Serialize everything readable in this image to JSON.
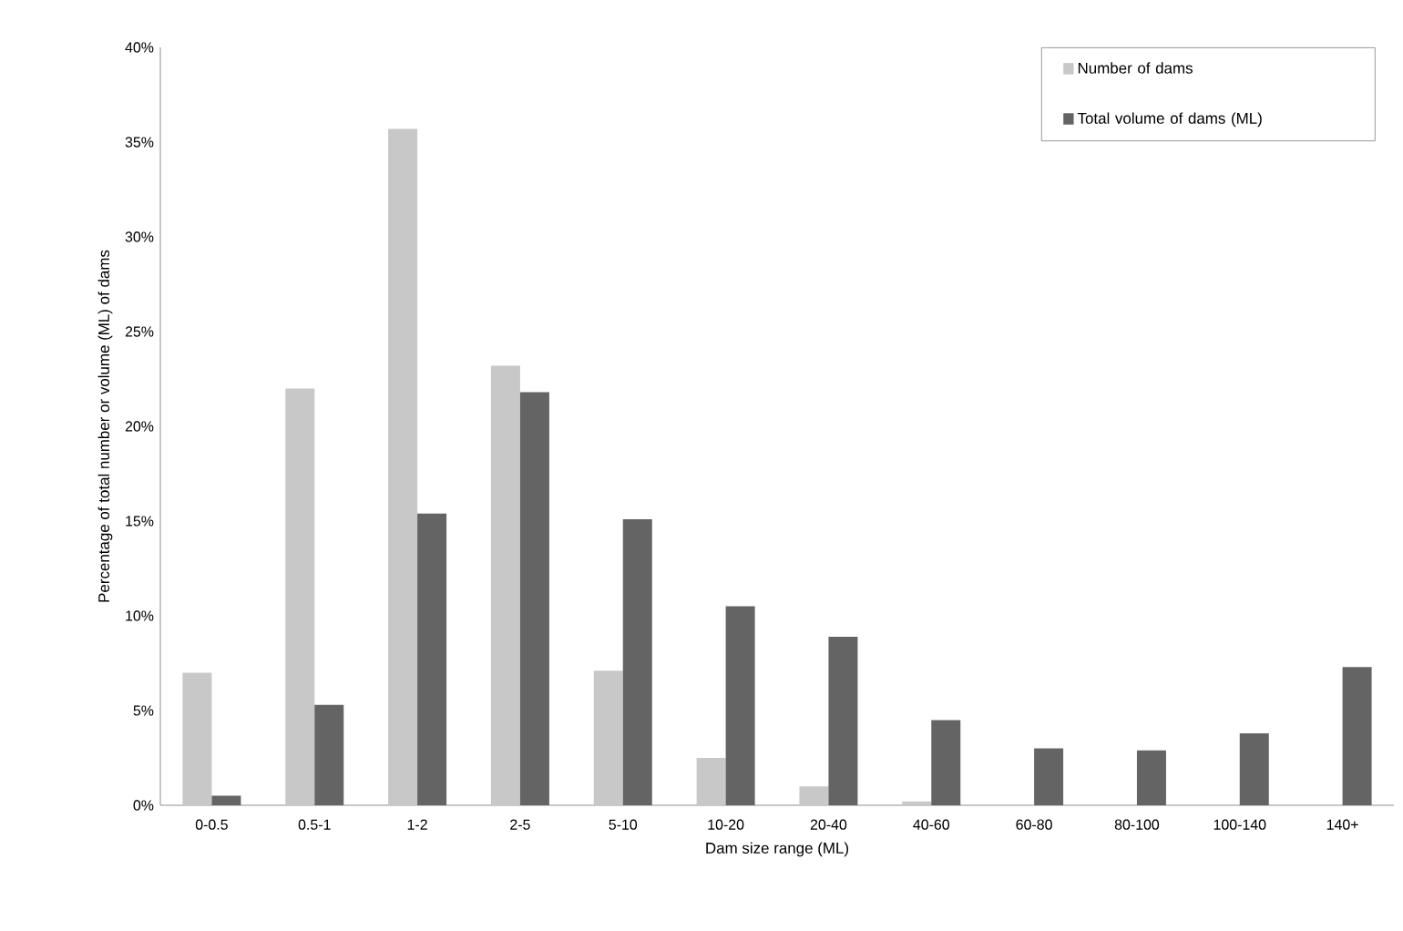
{
  "chart_data": {
    "type": "bar",
    "xlabel": "Dam size range (ML)",
    "ylabel": "Percentage of total number or volume (ML) of dams",
    "categories": [
      "0-0.5",
      "0.5-1",
      "1-2",
      "2-5",
      "5-10",
      "10-20",
      "20-40",
      "40-60",
      "60-80",
      "80-100",
      "100-140",
      "140+"
    ],
    "series": [
      {
        "name": "Number of dams",
        "color": "#c8c8c8",
        "values": [
          7.0,
          22.0,
          35.7,
          23.2,
          7.1,
          2.5,
          1.0,
          0.2,
          0,
          0,
          0,
          0
        ]
      },
      {
        "name": "Total volume of dams (ML)",
        "color": "#646464",
        "values": [
          0.5,
          5.3,
          15.4,
          21.8,
          15.1,
          10.5,
          8.9,
          4.5,
          3.0,
          2.9,
          3.8,
          7.3
        ]
      }
    ],
    "ylim": [
      0,
      40
    ],
    "yticks": [
      {
        "value": 0,
        "label": "0%"
      },
      {
        "value": 5,
        "label": "5%"
      },
      {
        "value": 10,
        "label": "10%"
      },
      {
        "value": 15,
        "label": "15%"
      },
      {
        "value": 20,
        "label": "20%"
      },
      {
        "value": 25,
        "label": "25%"
      },
      {
        "value": 30,
        "label": "30%"
      },
      {
        "value": 35,
        "label": "35%"
      },
      {
        "value": 40,
        "label": "40%"
      }
    ],
    "legend": "top right",
    "grid": false
  }
}
